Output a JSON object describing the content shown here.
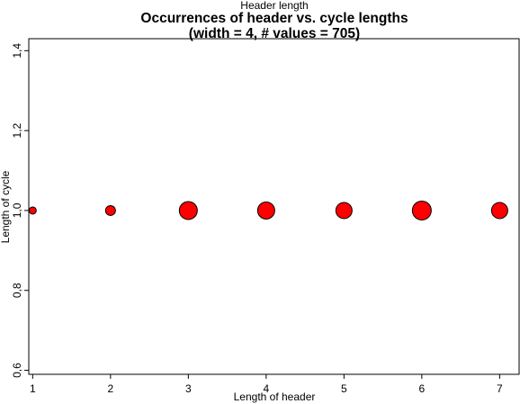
{
  "chart_data": {
    "type": "scatter",
    "top_label": "Header length",
    "title": "Occurrences of header vs. cycle lengths",
    "subtitle": "(width = 4, # values = 705)",
    "xlabel": "Length of header",
    "ylabel": "Length of cycle",
    "xlim": [
      0.95,
      7.25
    ],
    "ylim": [
      0.59,
      1.43
    ],
    "x_ticks": [
      "1",
      "2",
      "3",
      "4",
      "5",
      "6",
      "7"
    ],
    "y_ticks": [
      {
        "value": 0.6,
        "label": "0,6"
      },
      {
        "value": 0.8,
        "label": "0,8"
      },
      {
        "value": 1.0,
        "label": "1,0"
      },
      {
        "value": 1.2,
        "label": "1,2"
      },
      {
        "value": 1.4,
        "label": "1,4"
      }
    ],
    "grid": false,
    "marker_color": "#ff0000",
    "points": [
      {
        "x": 1,
        "y": 1.0,
        "size": 4
      },
      {
        "x": 2,
        "y": 1.0,
        "size": 5.5
      },
      {
        "x": 3,
        "y": 1.0,
        "size": 10
      },
      {
        "x": 4,
        "y": 1.0,
        "size": 9.5
      },
      {
        "x": 5,
        "y": 1.0,
        "size": 9
      },
      {
        "x": 6,
        "y": 1.0,
        "size": 10.5
      },
      {
        "x": 7,
        "y": 1.0,
        "size": 9
      }
    ]
  }
}
